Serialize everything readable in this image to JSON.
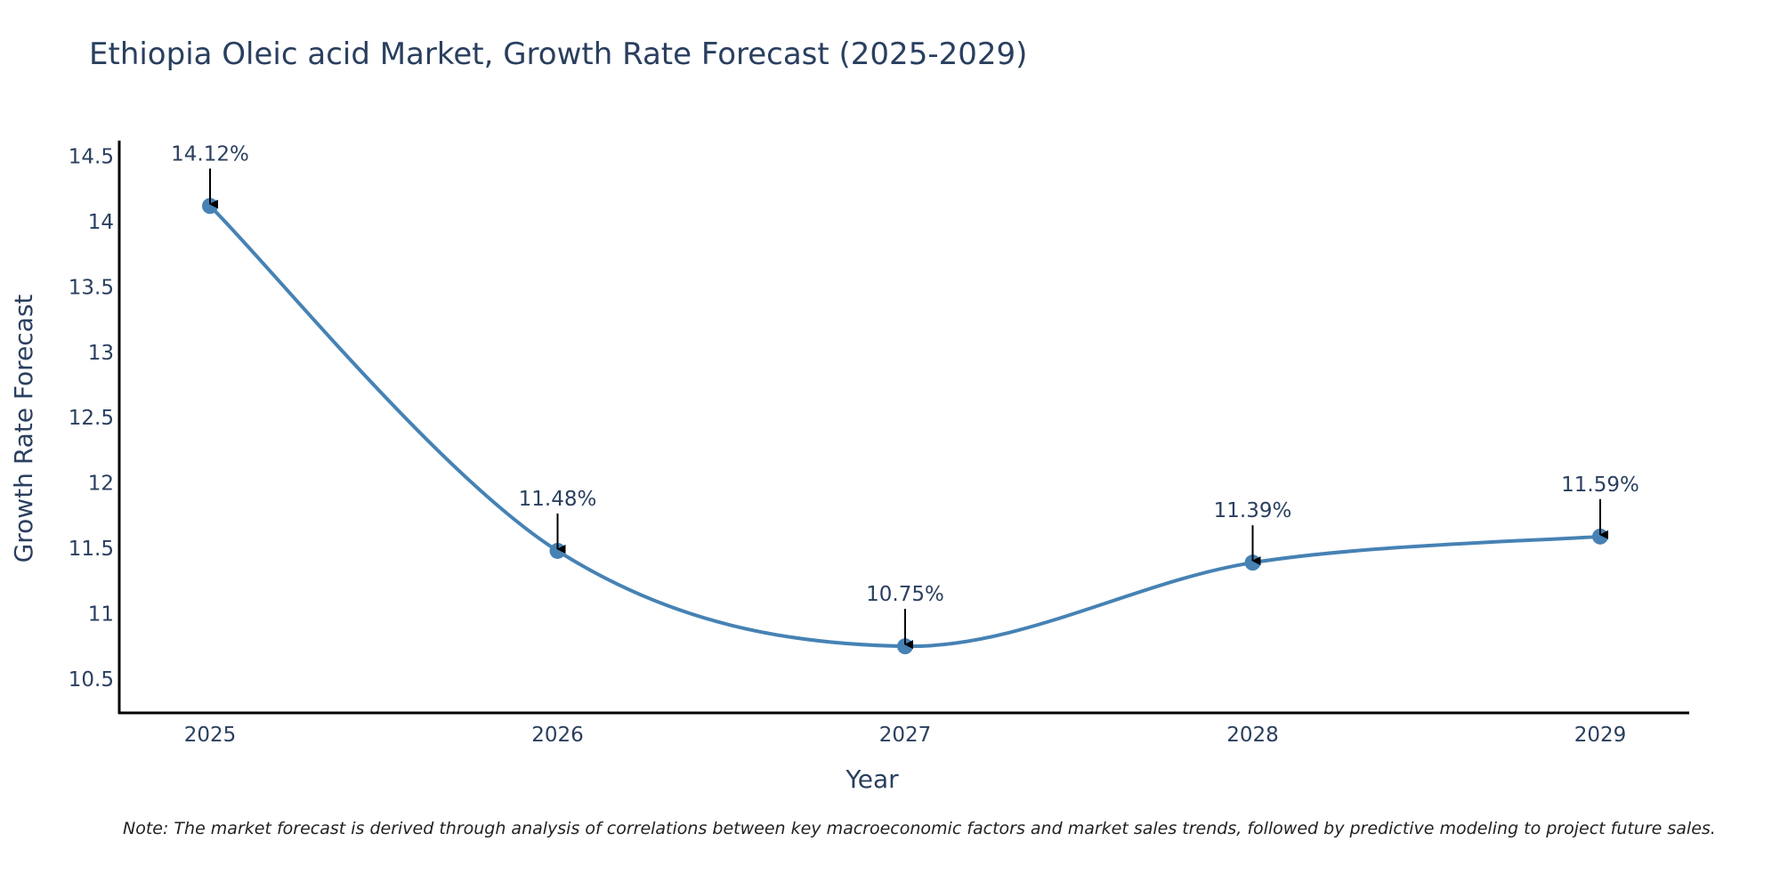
{
  "chart_data": {
    "type": "line",
    "title": "Ethiopia Oleic acid Market, Growth Rate Forecast (2025-2029)",
    "xlabel": "Year",
    "ylabel": "Growth Rate Forecast",
    "categories": [
      "2025",
      "2026",
      "2027",
      "2028",
      "2029"
    ],
    "series": [
      {
        "name": "Growth Rate Forecast",
        "values": [
          14.12,
          11.48,
          10.75,
          11.39,
          11.59
        ],
        "labels": [
          "14.12%",
          "11.48%",
          "10.75%",
          "11.39%",
          "11.59%"
        ]
      }
    ],
    "ylim": [
      10.24,
      14.62
    ],
    "yticks": [
      10.5,
      11,
      11.5,
      12,
      12.5,
      13,
      13.5,
      14,
      14.5
    ],
    "ytick_labels": [
      "10.5",
      "11",
      "11.5",
      "12",
      "12.5",
      "13",
      "13.5",
      "14",
      "14.5"
    ],
    "grid": false,
    "line_shape": "spline",
    "line_color": "#4682b4",
    "marker_color": "#4682b4",
    "annotation_arrow_color": "#000000",
    "note": "Note: The market forecast is derived through analysis of correlations between key macroeconomic factors and market sales trends, followed by predictive modeling to project future sales."
  }
}
